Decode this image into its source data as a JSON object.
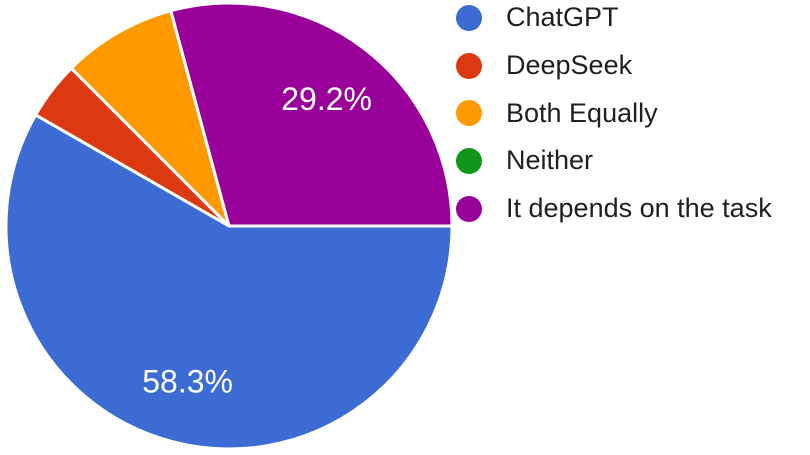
{
  "chart_data": {
    "type": "pie",
    "title": "",
    "legend_position": "right",
    "background_color": "#ffffff",
    "slice_border_color": "#ffffff",
    "label_text_color": "#ffffff",
    "legend_text_color": "#1f1f1f",
    "start_angle_deg": 0,
    "direction": "clockwise",
    "series": [
      {
        "name": "ChatGPT",
        "percent": 58.3,
        "color": "#3b6bd3",
        "label": "58.3%"
      },
      {
        "name": "DeepSeek",
        "percent": 4.2,
        "color": "#dc3912",
        "label": null
      },
      {
        "name": "Both Equally",
        "percent": 8.3,
        "color": "#ff9900",
        "label": null
      },
      {
        "name": "Neither",
        "percent": 0,
        "color": "#109618",
        "label": null
      },
      {
        "name": "It depends on the task",
        "percent": 29.2,
        "color": "#990099",
        "label": "29.2%"
      }
    ]
  }
}
